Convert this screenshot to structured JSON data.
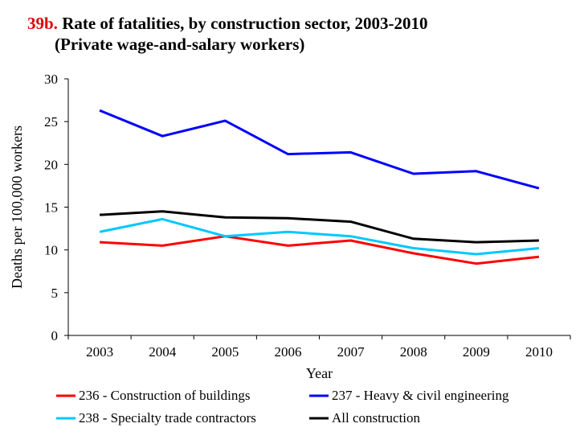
{
  "title_number": "39b.",
  "title_line1": "Rate of fatalities, by construction sector, 2003-2010",
  "title_line2": "(Private wage-and-salary workers)",
  "chart_data": {
    "type": "line",
    "xlabel": "Year",
    "ylabel": "Deaths per 100,000 workers",
    "x": [
      "2003",
      "2004",
      "2005",
      "2006",
      "2007",
      "2008",
      "2009",
      "2010"
    ],
    "ylim": [
      0,
      30
    ],
    "yticks": [
      0,
      5,
      10,
      15,
      20,
      25,
      30
    ],
    "grid": false,
    "legend_position": "bottom",
    "series": [
      {
        "name": "236 - Construction of buildings",
        "color": "#ff0000",
        "values": [
          10.9,
          10.5,
          11.6,
          10.5,
          11.1,
          9.6,
          8.4,
          9.2
        ]
      },
      {
        "name": "237 - Heavy & civil engineering",
        "color": "#0000ff",
        "values": [
          26.3,
          23.3,
          25.1,
          21.2,
          21.4,
          18.9,
          19.2,
          17.2
        ]
      },
      {
        "name": "238 - Specialty trade contractors",
        "color": "#00c8ff",
        "values": [
          12.1,
          13.6,
          11.6,
          12.1,
          11.6,
          10.2,
          9.5,
          10.2
        ]
      },
      {
        "name": "All construction",
        "color": "#000000",
        "values": [
          14.1,
          14.5,
          13.8,
          13.7,
          13.3,
          11.3,
          10.9,
          11.1
        ]
      }
    ]
  }
}
